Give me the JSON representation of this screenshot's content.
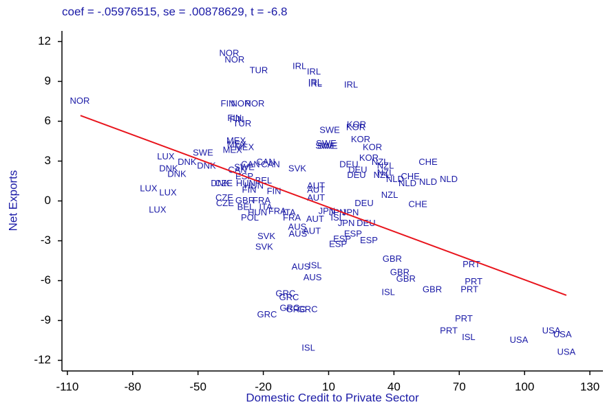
{
  "chart_data": {
    "type": "scatter",
    "title": "coef = -.05976515, se = .00878629, t = -6.8",
    "x_label": "Domestic Credit to Private Sector",
    "y_label": "Net Exports",
    "xlim": [
      -112.5,
      136
    ],
    "ylim": [
      -12.8,
      12.8
    ],
    "xticks": [
      -110,
      -80,
      -50,
      -20,
      10,
      40,
      70,
      100,
      130
    ],
    "yticks": [
      12,
      9,
      6,
      3,
      0,
      -3,
      -6,
      -9,
      -12
    ],
    "color": "#1a1aa6",
    "point_labels": [
      "NOR",
      "NOR",
      "NOR",
      "TUR",
      "IRL",
      "IRL",
      "IRL",
      "IRL",
      "IRL",
      "FIN",
      "NOR",
      "NOR",
      "FIN",
      "FIN",
      "TUR",
      "SWE",
      "KOR",
      "KOR",
      "KOR",
      "SWE",
      "SWE",
      "SWE",
      "KOR",
      "MEX",
      "MEX",
      "MEX",
      "MEX",
      "LUX",
      "SWE",
      "DNK",
      "DNK",
      "DNK",
      "DNK",
      "CAN",
      "CAN",
      "CAN",
      "SVK",
      "KOR",
      "DEU",
      "NZL",
      "NZL",
      "DEU",
      "NZL",
      "DEU",
      "NZL",
      "CHE",
      "CHE",
      "NLD",
      "NLD",
      "NLD",
      "NLD",
      "AUT",
      "AUT",
      "AUT",
      "LUX",
      "LUX",
      "LUX",
      "CZE",
      "CZE",
      "CZE",
      "POL",
      "NZL",
      "DEU",
      "CHE",
      "JPN",
      "JPN",
      "JPN",
      "ISL",
      "JPN",
      "DEU",
      "ESP",
      "ESP",
      "ESP",
      "ESP",
      "SVK",
      "SVK",
      "AUT",
      "AUS",
      "AUS",
      "AUT",
      "AUS",
      "ISL",
      "AUS",
      "GBR",
      "GBR",
      "GBR",
      "GBR",
      "ISL",
      "PRT",
      "PRT",
      "PRT",
      "PRT",
      "PRT",
      "ISL",
      "USA",
      "USA",
      "USA",
      "USA",
      "ISL",
      "GRC",
      "GRC",
      "GRC",
      "GRC",
      "GRC",
      "GRC",
      "DNK",
      "HUN",
      "HUN",
      "FIN",
      "BEL",
      "ESP",
      "BEL",
      "ITA",
      "FRA",
      "ITA",
      "FRA",
      "HUN",
      "GBR",
      "FRA",
      "CAN",
      "SWE",
      "FIN"
    ],
    "x": [
      -104.3,
      -35.7,
      -33.2,
      -22.1,
      -3.4,
      3.2,
      3.8,
      3.8,
      20.3,
      -36.3,
      -30.3,
      -24.0,
      -33.2,
      -32.2,
      -29.7,
      10.5,
      22.8,
      22.5,
      24.7,
      8.9,
      8.6,
      9.5,
      30.1,
      -32.5,
      -32.2,
      -28.7,
      -34.2,
      -64.8,
      -47.7,
      -55.0,
      -63.5,
      -46.1,
      -59.7,
      -18.9,
      -16.7,
      -25.9,
      -4.4,
      28.5,
      19.3,
      33.6,
      36.1,
      23.4,
      36.1,
      22.8,
      34.5,
      55.7,
      47.5,
      40.5,
      46.2,
      55.7,
      65.2,
      4.2,
      4.2,
      4.2,
      -72.7,
      -63.8,
      -68.6,
      -38.2,
      -37.9,
      -37.6,
      -26.2,
      38.0,
      26.3,
      51.0,
      9.2,
      14.0,
      20.0,
      14.0,
      18.1,
      27.2,
      21.2,
      16.2,
      28.5,
      14.3,
      -18.6,
      -19.6,
      2.3,
      -4.1,
      -4.4,
      3.8,
      -2.8,
      3.8,
      2.6,
      39.2,
      42.7,
      45.5,
      57.6,
      37.4,
      75.6,
      76.6,
      74.7,
      72.1,
      65.2,
      74.3,
      97.4,
      112.3,
      117.4,
      119.2,
      0.7,
      -9.8,
      -8.2,
      -7.9,
      -5.0,
      0.4,
      -18.3,
      -39.8,
      -28.1,
      -24.3,
      -26.5,
      -19.9,
      -28.7,
      -28.1,
      -18.9,
      -13.6,
      -8.2,
      -6.9,
      -22.7,
      -28.4,
      -20.8,
      -31.9,
      -28.7,
      -15.1
    ],
    "y": [
      7.5,
      11.1,
      10.6,
      9.8,
      10.1,
      9.7,
      8.9,
      8.8,
      8.7,
      7.3,
      7.3,
      7.3,
      6.2,
      6.1,
      5.8,
      5.3,
      5.7,
      5.5,
      4.6,
      4.3,
      4.1,
      4.1,
      4.0,
      4.5,
      4.2,
      4.0,
      3.8,
      3.3,
      3.6,
      2.9,
      2.4,
      2.6,
      2.0,
      2.9,
      2.7,
      2.7,
      2.4,
      3.2,
      2.7,
      2.9,
      2.6,
      2.3,
      2.1,
      1.9,
      1.9,
      2.9,
      1.8,
      1.6,
      1.3,
      1.4,
      1.6,
      1.1,
      0.8,
      0.2,
      0.9,
      0.6,
      -0.7,
      1.3,
      0.2,
      -0.2,
      -1.3,
      0.4,
      -0.2,
      -0.3,
      -0.8,
      -0.9,
      -0.9,
      -1.3,
      -1.7,
      -1.7,
      -2.5,
      -2.9,
      -3.0,
      -3.3,
      -2.7,
      -3.5,
      -2.3,
      -2.5,
      -2.0,
      -1.4,
      -5.0,
      -4.9,
      -5.8,
      -4.4,
      -5.4,
      -5.9,
      -6.7,
      -6.9,
      -4.8,
      -6.1,
      -6.7,
      -8.9,
      -9.8,
      -10.3,
      -10.5,
      -9.8,
      -10.1,
      -11.4,
      -11.1,
      -7.0,
      -7.3,
      -8.1,
      -8.2,
      -8.2,
      -8.6,
      1.3,
      1.3,
      1.1,
      0.8,
      1.5,
      1.8,
      -0.5,
      -0.5,
      -0.8,
      -0.9,
      -1.3,
      -0.9,
      0.0,
      0.0,
      2.3,
      2.5,
      0.7
    ],
    "fit_line": {
      "color": "#e8141c",
      "x": [
        -104.0,
        119.2
      ],
      "y": [
        6.43,
        -7.1
      ]
    }
  }
}
